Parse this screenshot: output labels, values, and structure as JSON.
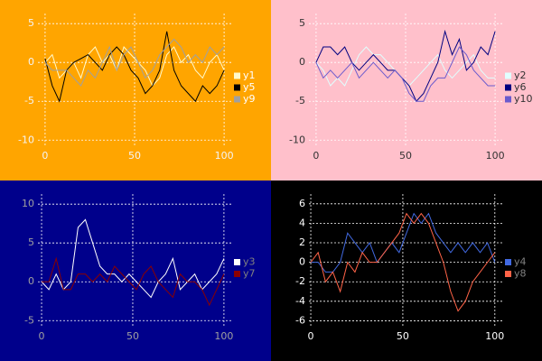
{
  "chart_data": [
    {
      "type": "line",
      "background": "#ffa500",
      "tick_color": "#f5f5f5",
      "legend_text_color": "#ffffff",
      "grid": true,
      "legend": "right",
      "x": [
        0,
        4,
        8,
        12,
        16,
        20,
        24,
        28,
        32,
        36,
        40,
        44,
        48,
        52,
        56,
        60,
        64,
        68,
        72,
        76,
        80,
        84,
        88,
        92,
        96,
        100
      ],
      "xlim": [
        -4,
        105
      ],
      "ylim": [
        -10.9,
        6.3
      ],
      "xticks": [
        0,
        50,
        100
      ],
      "yticks": [
        -10,
        -5,
        0,
        5
      ],
      "series": [
        {
          "name": "y1",
          "color": "#fffacd",
          "values": [
            0,
            1,
            -2,
            -1,
            0,
            -2,
            1,
            2,
            0,
            1,
            -1,
            2,
            1,
            0,
            -1,
            -3,
            -2,
            1,
            2,
            0,
            1,
            -1,
            -2,
            0,
            1,
            -1
          ]
        },
        {
          "name": "y5",
          "color": "#000000",
          "values": [
            0.5,
            -3,
            -5,
            -1,
            0,
            0.5,
            1,
            0,
            -1,
            1,
            2,
            1,
            -1,
            -2,
            -4,
            -3,
            -1,
            4,
            -1,
            -3,
            -4,
            -5,
            -3,
            -4,
            -3,
            -1
          ]
        },
        {
          "name": "y9",
          "color": "#a0a0a0",
          "values": [
            0,
            -1,
            -1,
            -1,
            -2,
            -3,
            -1,
            -2,
            0,
            2,
            -1,
            1,
            2,
            0,
            -2,
            -1,
            1,
            2,
            3,
            2,
            0,
            1,
            0,
            2,
            1,
            2
          ]
        }
      ]
    },
    {
      "type": "line",
      "background": "#ffc0cb",
      "tick_color": "#333333",
      "legend_text_color": "#333333",
      "grid": true,
      "legend": "right",
      "x": [
        0,
        4,
        8,
        12,
        16,
        20,
        24,
        28,
        32,
        36,
        40,
        44,
        48,
        52,
        56,
        60,
        64,
        68,
        72,
        76,
        80,
        84,
        88,
        92,
        96,
        100
      ],
      "xlim": [
        -4,
        105
      ],
      "ylim": [
        -10.9,
        6.3
      ],
      "xticks": [
        0,
        50,
        100
      ],
      "yticks": [
        -10,
        -5,
        0,
        5
      ],
      "series": [
        {
          "name": "y2",
          "color": "#e0ffff",
          "values": [
            0,
            -1,
            -3,
            -2,
            -3,
            -1,
            1,
            2,
            1,
            1,
            0,
            -1,
            -2,
            -3,
            -2,
            -1,
            0,
            1,
            -1,
            -2,
            -1,
            0,
            1,
            -1,
            -2,
            -2
          ]
        },
        {
          "name": "y6",
          "color": "#000080",
          "values": [
            0,
            2,
            2,
            1,
            2,
            0,
            -1,
            0,
            1,
            0,
            -1,
            -1,
            -2,
            -3,
            -5,
            -4,
            -2,
            0,
            4,
            1,
            3,
            -1,
            0,
            2,
            1,
            4
          ]
        },
        {
          "name": "y10",
          "color": "#6a5acd",
          "values": [
            0,
            -2,
            -1,
            -2,
            -1,
            0,
            -2,
            -1,
            0,
            -1,
            -2,
            -1,
            -2,
            -4,
            -5,
            -5,
            -3,
            -2,
            -2,
            0,
            2,
            1,
            -1,
            -2,
            -3,
            -3
          ]
        }
      ]
    },
    {
      "type": "line",
      "background": "#00008b",
      "tick_color": "#a0a0a0",
      "legend_text_color": "#808080",
      "grid": true,
      "legend": "right",
      "x": [
        0,
        4,
        8,
        12,
        16,
        20,
        24,
        28,
        32,
        36,
        40,
        44,
        48,
        52,
        56,
        60,
        64,
        68,
        72,
        76,
        80,
        84,
        88,
        92,
        96,
        100
      ],
      "xlim": [
        -2,
        105
      ],
      "ylim": [
        -5.9,
        11.3
      ],
      "xticks": [
        0,
        50,
        100
      ],
      "yticks": [
        -5,
        0,
        5,
        10
      ],
      "series": [
        {
          "name": "y3",
          "color": "#ffffff",
          "values": [
            0,
            -1,
            1,
            -1,
            0,
            7,
            8,
            5,
            2,
            1,
            1,
            0,
            1,
            0,
            -1,
            -2,
            0,
            1,
            3,
            -1,
            0,
            1,
            -1,
            0,
            1,
            3
          ]
        },
        {
          "name": "y7",
          "color": "#8b0000",
          "values": [
            0,
            0,
            3,
            -1,
            -1,
            1,
            1,
            0,
            1,
            0,
            2,
            1,
            0,
            -1,
            1,
            2,
            0,
            -1,
            -2,
            1,
            0,
            0,
            -1,
            -3,
            -1,
            1
          ]
        }
      ]
    },
    {
      "type": "line",
      "background": "#000000",
      "tick_color": "#ffffff",
      "legend_text_color": "#808080",
      "grid": true,
      "legend": "right",
      "x": [
        0,
        4,
        8,
        12,
        16,
        20,
        24,
        28,
        32,
        36,
        40,
        44,
        48,
        52,
        56,
        60,
        64,
        68,
        72,
        76,
        80,
        84,
        88,
        92,
        96,
        100
      ],
      "xlim": [
        -1,
        105
      ],
      "ylim": [
        -6.7,
        7
      ],
      "xticks": [
        0,
        50,
        100
      ],
      "yticks": [
        -6,
        -4,
        -2,
        0,
        2,
        4,
        6
      ],
      "series": [
        {
          "name": "y4",
          "color": "#4169e1",
          "values": [
            0,
            0,
            -1,
            -1,
            0,
            3,
            2,
            1,
            2,
            0,
            1,
            2,
            1,
            3,
            5,
            4,
            5,
            3,
            2,
            1,
            2,
            1,
            2,
            1,
            2,
            0
          ]
        },
        {
          "name": "y8",
          "color": "#ff6347",
          "values": [
            0,
            1,
            -2,
            -1,
            -3,
            0,
            -1,
            1,
            0,
            0,
            1,
            2,
            3,
            5,
            4,
            5,
            4,
            2,
            0,
            -3,
            -5,
            -4,
            -2,
            -1,
            0,
            1
          ]
        }
      ]
    }
  ]
}
